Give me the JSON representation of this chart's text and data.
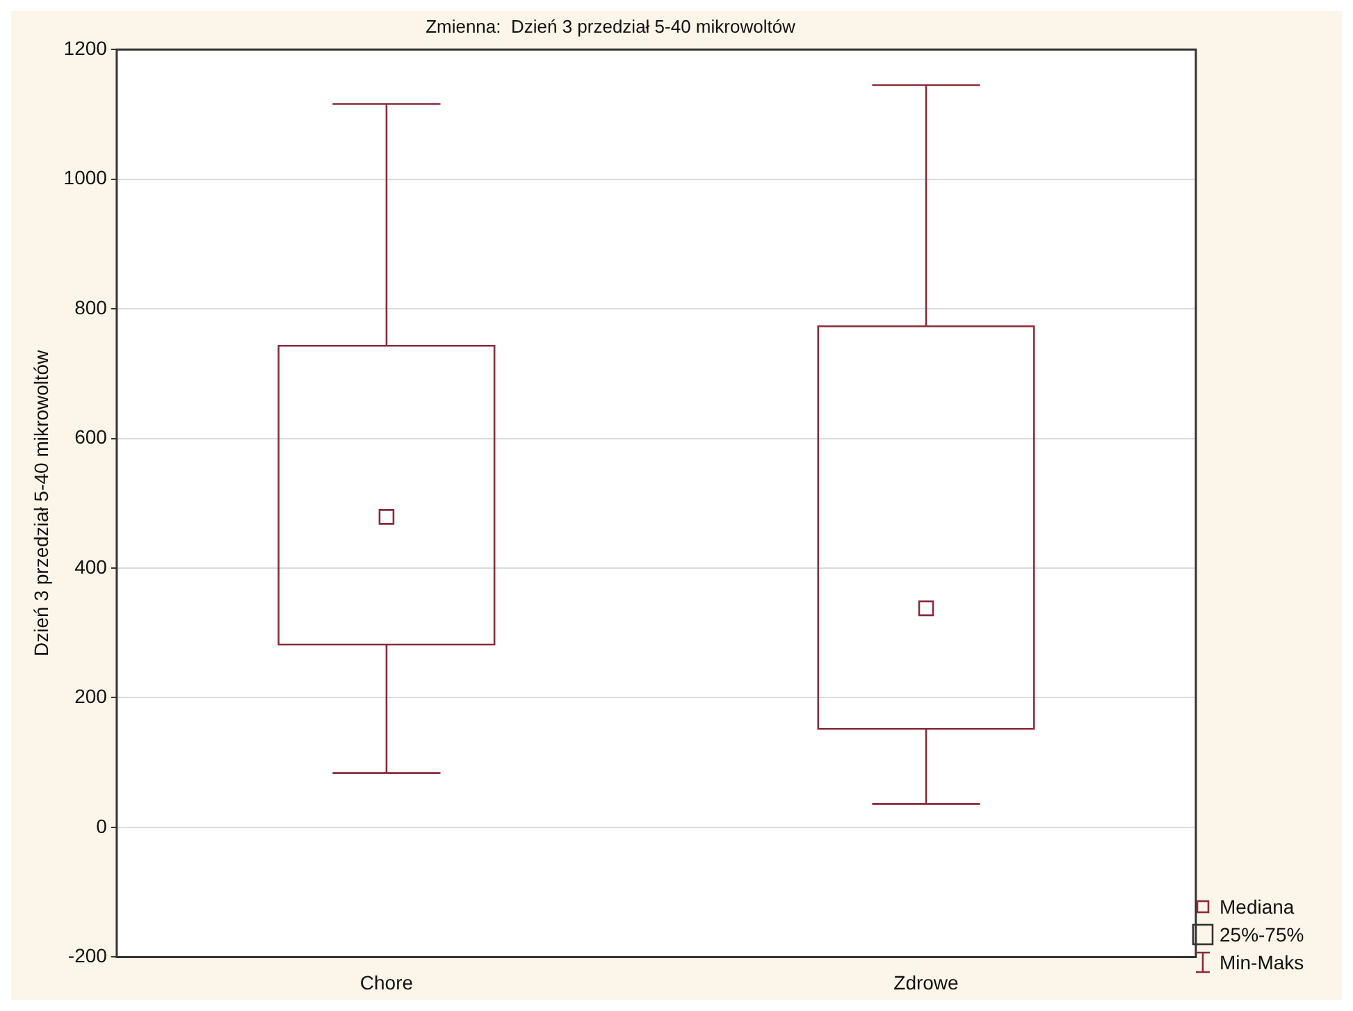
{
  "chart_data": {
    "type": "box",
    "title": "Zmienna:  Dzień 3 przedział 5-40 mikrowoltów",
    "ylabel": "Dzień 3 przedział 5-40 mikrowoltów",
    "categories": [
      "Chore",
      "Zdrowe"
    ],
    "series": [
      {
        "color": "#8b2c3a",
        "boxes": [
          {
            "low": 84,
            "q1": 282,
            "median": 479,
            "q3": 743,
            "high": 1116
          },
          {
            "low": 36,
            "q1": 152,
            "median": 338,
            "q3": 773,
            "high": 1145
          }
        ]
      }
    ],
    "ylim": [
      -200,
      1200
    ],
    "yticks": [
      -200,
      0,
      200,
      400,
      600,
      800,
      1000,
      1200
    ],
    "grid": "y",
    "annotations": [
      "Mediana",
      "25%-75%",
      "Min-Maks"
    ]
  }
}
